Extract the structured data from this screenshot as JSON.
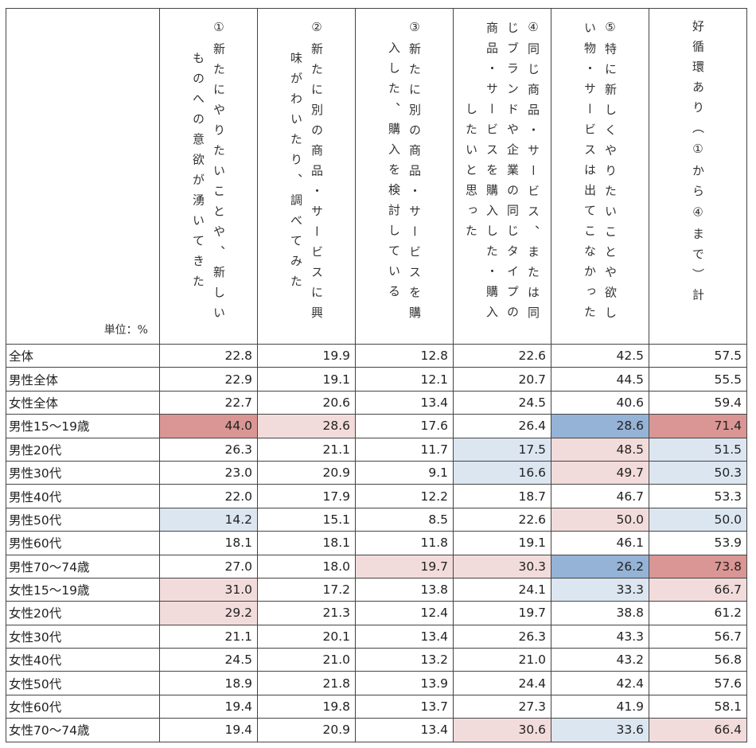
{
  "unit_label": "単位：%",
  "columns": [
    {
      "lines": [
        "①新たにやりたいことや、新しい",
        "ものへの意欲が湧いてきた"
      ]
    },
    {
      "lines": [
        "②新たに別の商品・サービスに興",
        "味がわいたり、調べてみた"
      ]
    },
    {
      "lines": [
        "③新たに別の商品・サービスを購",
        "入した、購入を検討している"
      ]
    },
    {
      "lines": [
        "④同じ商品・サービス、または同",
        "じブランドや企業の同じタイプの",
        "商品・サービスを購入した・購入",
        "したいと思った"
      ]
    },
    {
      "lines": [
        "⑤特に新しくやりたいことや欲し",
        "い物・サービスは出てこなかった"
      ]
    },
    {
      "lines": [
        "好循環あり（①から④まで）計"
      ]
    }
  ],
  "highlight_colors": {
    "R": "#da9694",
    "r": "#f2dcdb",
    "B": "#95b3d7",
    "b": "#dce6f1"
  },
  "rows": [
    {
      "label": "全体",
      "values": [
        "22.8",
        "19.9",
        "12.8",
        "22.6",
        "42.5",
        "57.5"
      ],
      "shade": [
        "",
        "",
        "",
        "",
        "",
        ""
      ]
    },
    {
      "label": "男性全体",
      "values": [
        "22.9",
        "19.1",
        "12.1",
        "20.7",
        "44.5",
        "55.5"
      ],
      "shade": [
        "",
        "",
        "",
        "",
        "",
        ""
      ]
    },
    {
      "label": "女性全体",
      "values": [
        "22.7",
        "20.6",
        "13.4",
        "24.5",
        "40.6",
        "59.4"
      ],
      "shade": [
        "",
        "",
        "",
        "",
        "",
        ""
      ]
    },
    {
      "label": "男性15～19歳",
      "values": [
        "44.0",
        "28.6",
        "17.6",
        "26.4",
        "28.6",
        "71.4"
      ],
      "shade": [
        "R",
        "r",
        "",
        "",
        "B",
        "R"
      ]
    },
    {
      "label": "男性20代",
      "values": [
        "26.3",
        "21.1",
        "11.7",
        "17.5",
        "48.5",
        "51.5"
      ],
      "shade": [
        "",
        "",
        "",
        "b",
        "r",
        "b"
      ]
    },
    {
      "label": "男性30代",
      "values": [
        "23.0",
        "20.9",
        "9.1",
        "16.6",
        "49.7",
        "50.3"
      ],
      "shade": [
        "",
        "",
        "",
        "b",
        "r",
        "b"
      ]
    },
    {
      "label": "男性40代",
      "values": [
        "22.0",
        "17.9",
        "12.2",
        "18.7",
        "46.7",
        "53.3"
      ],
      "shade": [
        "",
        "",
        "",
        "",
        "",
        ""
      ]
    },
    {
      "label": "男性50代",
      "values": [
        "14.2",
        "15.1",
        "8.5",
        "22.6",
        "50.0",
        "50.0"
      ],
      "shade": [
        "b",
        "",
        "",
        "",
        "r",
        "b"
      ]
    },
    {
      "label": "男性60代",
      "values": [
        "18.1",
        "18.1",
        "11.8",
        "19.1",
        "46.1",
        "53.9"
      ],
      "shade": [
        "",
        "",
        "",
        "",
        "",
        ""
      ]
    },
    {
      "label": "男性70～74歳",
      "values": [
        "27.0",
        "18.0",
        "19.7",
        "30.3",
        "26.2",
        "73.8"
      ],
      "shade": [
        "",
        "",
        "r",
        "r",
        "B",
        "R"
      ]
    },
    {
      "label": "女性15～19歳",
      "values": [
        "31.0",
        "17.2",
        "13.8",
        "24.1",
        "33.3",
        "66.7"
      ],
      "shade": [
        "r",
        "",
        "",
        "",
        "b",
        "r"
      ]
    },
    {
      "label": "女性20代",
      "values": [
        "29.2",
        "21.3",
        "12.4",
        "19.7",
        "38.8",
        "61.2"
      ],
      "shade": [
        "r",
        "",
        "",
        "",
        "",
        ""
      ]
    },
    {
      "label": "女性30代",
      "values": [
        "21.1",
        "20.1",
        "13.4",
        "26.3",
        "43.3",
        "56.7"
      ],
      "shade": [
        "",
        "",
        "",
        "",
        "",
        ""
      ]
    },
    {
      "label": "女性40代",
      "values": [
        "24.5",
        "21.0",
        "13.2",
        "21.0",
        "43.2",
        "56.8"
      ],
      "shade": [
        "",
        "",
        "",
        "",
        "",
        ""
      ]
    },
    {
      "label": "女性50代",
      "values": [
        "18.9",
        "21.8",
        "13.9",
        "24.4",
        "42.4",
        "57.6"
      ],
      "shade": [
        "",
        "",
        "",
        "",
        "",
        ""
      ]
    },
    {
      "label": "女性60代",
      "values": [
        "19.4",
        "19.8",
        "13.7",
        "27.3",
        "41.9",
        "58.1"
      ],
      "shade": [
        "",
        "",
        "",
        "",
        "",
        ""
      ]
    },
    {
      "label": "女性70～74歳",
      "values": [
        "19.4",
        "20.9",
        "13.4",
        "30.6",
        "33.6",
        "66.4"
      ],
      "shade": [
        "",
        "",
        "",
        "r",
        "b",
        "r"
      ]
    }
  ]
}
